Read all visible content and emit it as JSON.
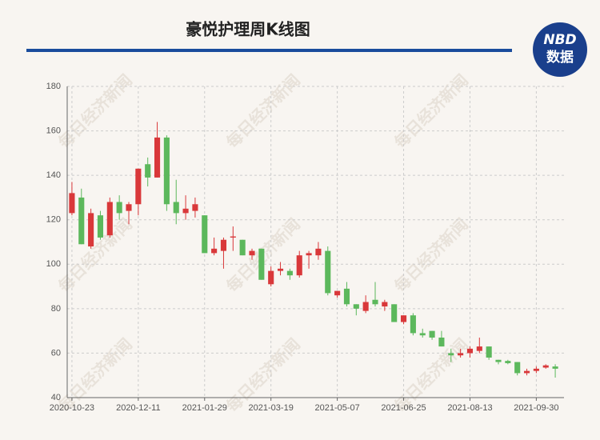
{
  "chart_data": {
    "type": "candlestick",
    "title": "豪悦护理周K线图",
    "logo": [
      "NBD",
      "数据"
    ],
    "watermark": "每日经济新闻",
    "categories": [
      "2020-10-23",
      null,
      null,
      null,
      null,
      null,
      null,
      "2020-12-11",
      null,
      null,
      null,
      null,
      null,
      null,
      "2021-01-29",
      null,
      null,
      null,
      null,
      null,
      null,
      "2021-03-19",
      null,
      null,
      null,
      null,
      null,
      null,
      "2021-05-07",
      null,
      null,
      null,
      null,
      null,
      null,
      "2021-06-25",
      null,
      null,
      null,
      null,
      null,
      null,
      "2021-08-13",
      null,
      null,
      null,
      null,
      null,
      null,
      "2021-09-30",
      null,
      null
    ],
    "series": [
      {
        "open": [
          123,
          130,
          108,
          122,
          113,
          128,
          124,
          127,
          145,
          139,
          157,
          128,
          123,
          124,
          122,
          105,
          106,
          112,
          111,
          104,
          107,
          91,
          97,
          97,
          95,
          104,
          104,
          106,
          86,
          89,
          82,
          79,
          84,
          81,
          82,
          74,
          77,
          69,
          70,
          67,
          60,
          59,
          60,
          61,
          63,
          57,
          56.5,
          56,
          51,
          52,
          53.5,
          54
        ],
        "high": [
          137,
          134,
          125,
          124,
          130,
          131,
          128,
          143,
          148,
          164,
          158,
          138,
          131,
          130,
          122,
          112,
          112,
          117,
          111,
          107,
          107,
          99,
          101,
          98,
          106,
          106,
          110,
          108,
          88,
          92,
          82,
          86,
          92,
          84,
          82,
          77,
          78,
          71,
          70,
          70,
          62,
          62,
          63,
          67,
          63,
          57,
          57,
          56,
          53,
          54,
          55,
          55
        ],
        "low": [
          122,
          109,
          107,
          111,
          112,
          120,
          118,
          122,
          135,
          139,
          124,
          118,
          120,
          121,
          105,
          104,
          98,
          106,
          104,
          102,
          93,
          90,
          95,
          93,
          94,
          98,
          102,
          86,
          85,
          81,
          77,
          78,
          81,
          79,
          74,
          73,
          68,
          67,
          66,
          63,
          56,
          58,
          58,
          60,
          57,
          55,
          55,
          50,
          50,
          51,
          53,
          49
        ],
        "close": [
          132,
          109,
          123,
          112,
          128,
          123,
          127,
          143,
          139,
          157,
          127,
          123,
          125,
          127,
          105,
          107,
          111,
          112.5,
          104,
          106,
          93,
          97,
          98,
          95,
          104,
          105,
          107,
          87,
          88,
          82,
          80,
          83,
          82,
          83,
          74,
          77,
          69,
          68,
          67,
          63,
          59,
          60,
          62,
          63,
          58,
          56,
          55.5,
          51,
          52,
          53,
          54.5,
          53
        ]
      }
    ],
    "up_color": "#d9383a",
    "down_color": "#5cb85c",
    "ylim": [
      40,
      180
    ],
    "yticks": [
      40,
      60,
      80,
      100,
      120,
      140,
      160,
      180
    ],
    "grid": true
  }
}
